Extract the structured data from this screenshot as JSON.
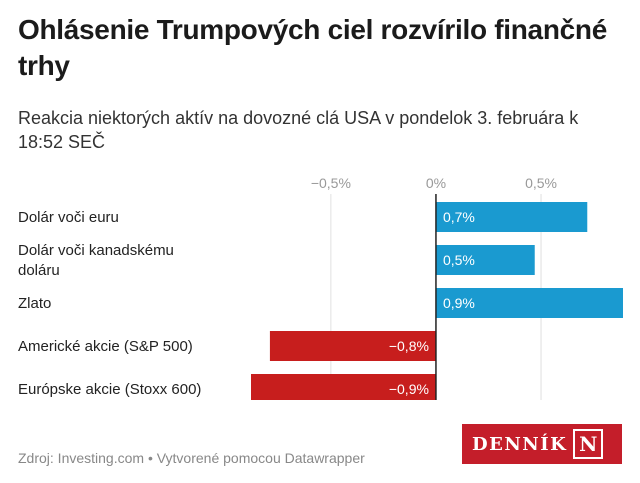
{
  "header": {
    "title": "Ohlásenie Trumpových cieľ rozvírilo finančné trhy",
    "subtitle": "Reakcia niektorých aktív na dovozné clá USA v pondelok 3. februára k 18:52 SEČ"
  },
  "chart_data": {
    "type": "bar",
    "orientation": "horizontal",
    "categories": [
      [
        "Dolár voči euru"
      ],
      [
        "Dolár voči kanadskému",
        "doláru"
      ],
      [
        "Zlato"
      ],
      [
        "Americké akcie (S&P 500)"
      ],
      [
        "Európske akcie (Stoxx 600)"
      ]
    ],
    "values": [
      0.72,
      0.47,
      0.89,
      -0.79,
      -0.88
    ],
    "value_labels": [
      "0,7%",
      "0,5%",
      "0,9%",
      "−0,8%",
      "−0,9%"
    ],
    "xlim": [
      -0.88,
      0.89
    ],
    "ticks": [
      {
        "value": -0.5,
        "label": "−0,5%"
      },
      {
        "value": 0,
        "label": "0%"
      },
      {
        "value": 0.5,
        "label": "0,5%"
      }
    ],
    "colors": {
      "positive": "#1a9ad0",
      "negative": "#c71e1d",
      "grid": "#e0e0e0",
      "zero_line": "#222222"
    }
  },
  "footer": {
    "source": "Zdroj: Investing.com • Vytvorené pomocou Datawrapper"
  },
  "logo": {
    "text": "DENNÍK",
    "mark": "N"
  }
}
